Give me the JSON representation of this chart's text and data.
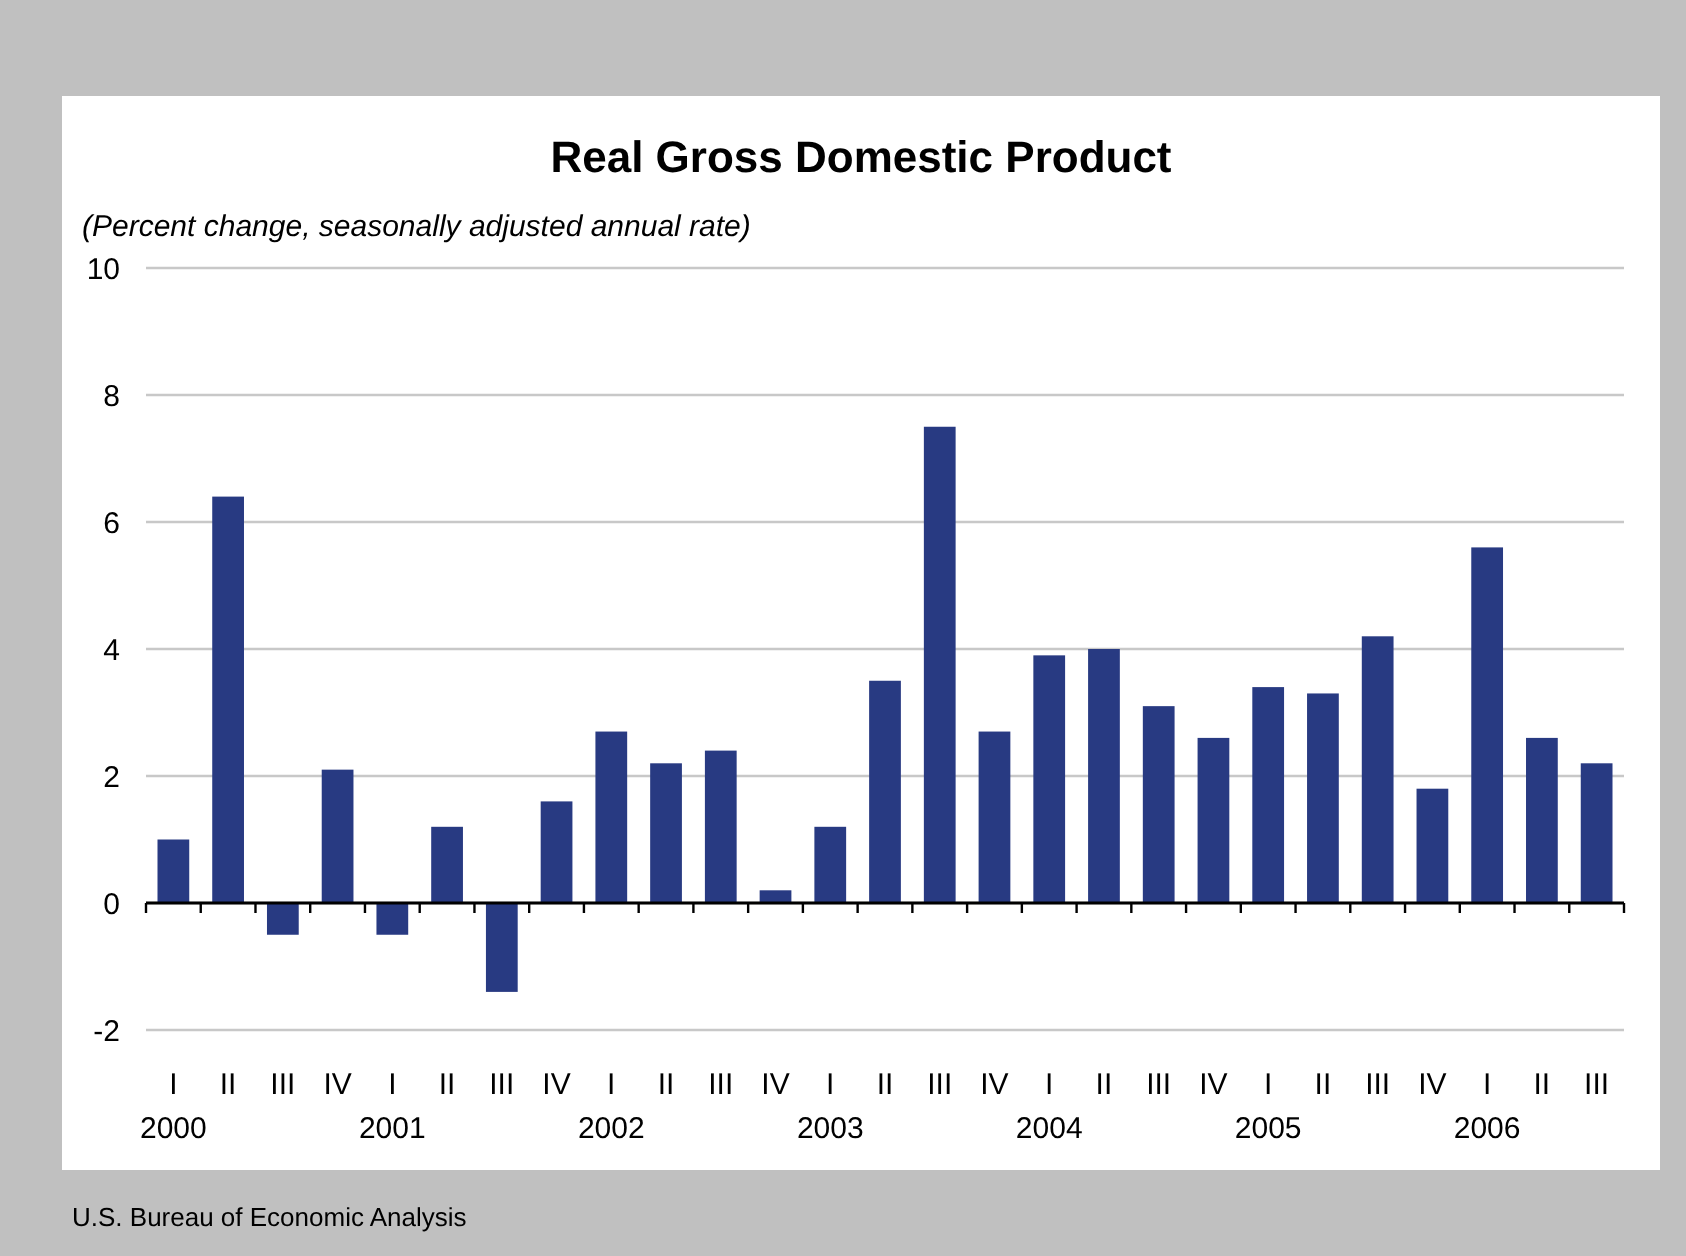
{
  "chart_data": {
    "type": "bar",
    "title": "Real Gross Domestic Product",
    "subtitle": "(Percent change, seasonally adjusted annual rate)",
    "categories": [
      "I",
      "II",
      "III",
      "IV",
      "I",
      "II",
      "III",
      "IV",
      "I",
      "II",
      "III",
      "IV",
      "I",
      "II",
      "III",
      "IV",
      "I",
      "II",
      "III",
      "IV",
      "I",
      "II",
      "III",
      "IV",
      "I",
      "II",
      "III"
    ],
    "values": [
      1.0,
      6.4,
      -0.5,
      2.1,
      -0.5,
      1.2,
      -1.4,
      1.6,
      2.7,
      2.2,
      2.4,
      0.2,
      1.2,
      3.5,
      7.5,
      2.7,
      3.9,
      4.0,
      3.1,
      2.6,
      3.4,
      3.3,
      4.2,
      1.8,
      5.6,
      2.6,
      2.2
    ],
    "color": "#283a82",
    "ylim": [
      -2,
      10
    ],
    "yticks": [
      -2,
      0,
      2,
      4,
      6,
      8,
      10
    ],
    "grid": "y",
    "annotations": [
      "2000",
      "2001",
      "2002",
      "2003",
      "2004",
      "2005",
      "2006",
      "U.S. Bureau of Economic Analysis"
    ]
  }
}
